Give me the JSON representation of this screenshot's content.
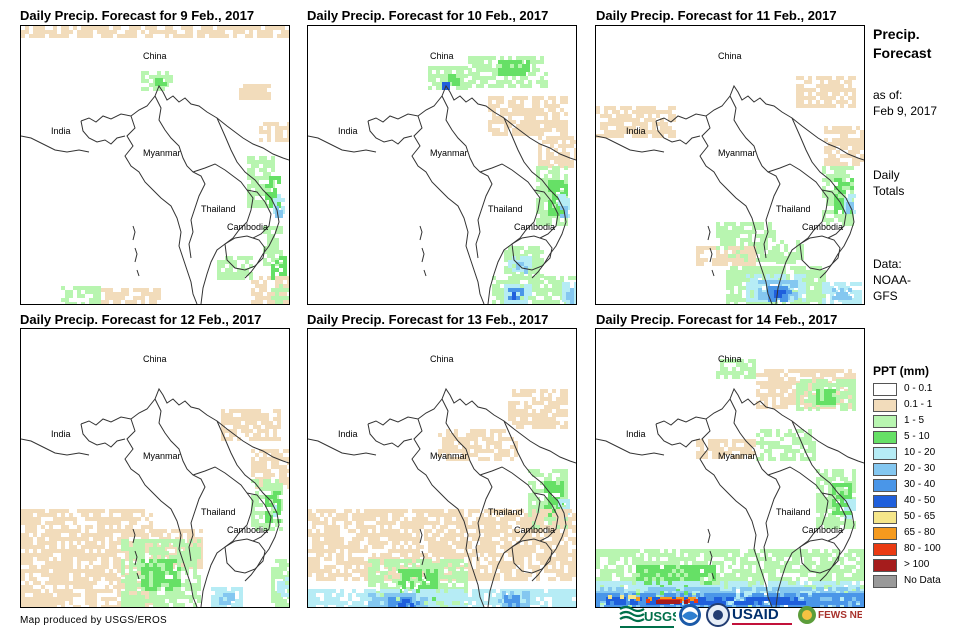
{
  "panels": [
    {
      "title": "Daily Precip. Forecast for 9 Feb., 2017",
      "pattern": "p9"
    },
    {
      "title": "Daily Precip. Forecast for 10 Feb., 2017",
      "pattern": "p10"
    },
    {
      "title": "Daily Precip. Forecast for 11 Feb., 2017",
      "pattern": "p11"
    },
    {
      "title": "Daily Precip. Forecast for 12 Feb., 2017",
      "pattern": "p12"
    },
    {
      "title": "Daily Precip. Forecast for 13 Feb., 2017",
      "pattern": "p13"
    },
    {
      "title": "Daily Precip. Forecast for 14 Feb., 2017",
      "pattern": "p14"
    }
  ],
  "place_labels": {
    "china": "China",
    "india": "India",
    "myanmar": "Myanmar",
    "thailand": "Thailand",
    "cambodia": "Cambodia"
  },
  "sidebar": {
    "title_line1": "Precip.",
    "title_line2": "Forecast",
    "asof_label": "as of:",
    "asof_date": "Feb 9, 2017",
    "totals_line1": "Daily",
    "totals_line2": "Totals",
    "data_line1": "Data:",
    "data_line2": "NOAA-",
    "data_line3": "GFS"
  },
  "legend": {
    "title": "PPT (mm)",
    "items": [
      {
        "label": "0 - 0.1",
        "color": "#ffffff"
      },
      {
        "label": "0.1 - 1",
        "color": "#f2dcbb"
      },
      {
        "label": "1 - 5",
        "color": "#b8f5b0"
      },
      {
        "label": "5 - 10",
        "color": "#66e066"
      },
      {
        "label": "10 - 20",
        "color": "#b6ecf5"
      },
      {
        "label": "20 - 30",
        "color": "#84c7f0"
      },
      {
        "label": "30 - 40",
        "color": "#4a96e8"
      },
      {
        "label": "40 - 50",
        "color": "#1f5fdc"
      },
      {
        "label": "50 - 65",
        "color": "#f5e68a"
      },
      {
        "label": "65 - 80",
        "color": "#f59a1e"
      },
      {
        "label": "80 - 100",
        "color": "#ea3a12"
      },
      {
        "label": "> 100",
        "color": "#a51c1c"
      },
      {
        "label": "No Data",
        "color": "#999999"
      }
    ]
  },
  "footer": {
    "credit": "Map produced by USGS/EROS"
  },
  "logos": {
    "usgs": "USGS",
    "usaid": "USAID",
    "fewsnet": "FEWS NET"
  }
}
